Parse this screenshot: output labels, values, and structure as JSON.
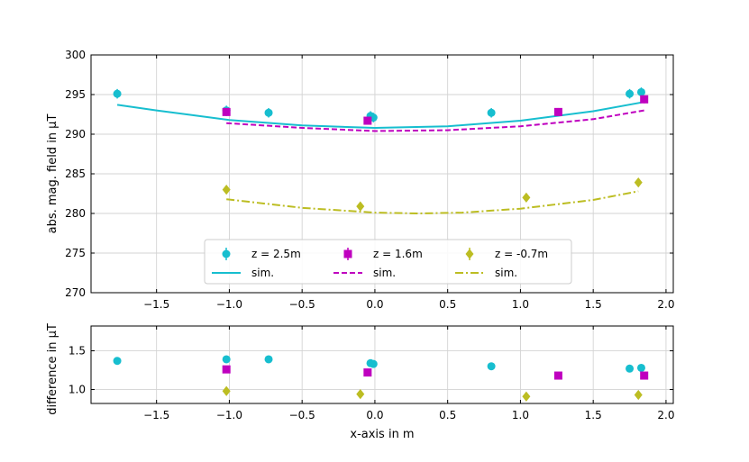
{
  "colors": {
    "cyan": "#17becf",
    "magenta": "#bf00bf",
    "olive": "#bcbd22",
    "grid": "#d3d3d3",
    "axis": "#000000"
  },
  "chart_data": [
    {
      "id": "top",
      "type": "scatter",
      "xlabel": "",
      "ylabel": "abs. mag. field in µT",
      "xlim": [
        -1.95,
        2.05
      ],
      "ylim": [
        270,
        300
      ],
      "xticks": [
        -1.5,
        -1.0,
        -0.5,
        0.0,
        0.5,
        1.0,
        1.5,
        2.0
      ],
      "xtick_labels": [
        "−1.5",
        "−1.0",
        "−0.5",
        "0.0",
        "0.5",
        "1.0",
        "1.5",
        "2.0"
      ],
      "yticks": [
        270,
        275,
        280,
        285,
        290,
        295,
        300
      ],
      "ytick_labels": [
        "270",
        "275",
        "280",
        "285",
        "290",
        "295",
        "300"
      ],
      "grid": true,
      "legend_position": "bottom-center",
      "series": [
        {
          "name": "z = 2.5m",
          "marker": "circle",
          "color_key": "cyan",
          "x": [
            -1.77,
            -1.02,
            -0.73,
            -0.03,
            -0.01,
            0.8,
            1.75,
            1.83
          ],
          "y": [
            295.1,
            293.0,
            292.7,
            292.3,
            292.1,
            292.7,
            295.1,
            295.3
          ],
          "err": [
            0.6,
            0.6,
            0.6,
            0.6,
            0.6,
            0.6,
            0.6,
            0.6
          ]
        },
        {
          "name": "z = 1.6m",
          "marker": "square",
          "color_key": "magenta",
          "x": [
            -1.02,
            -0.05,
            1.26,
            1.85
          ],
          "y": [
            292.8,
            291.7,
            292.8,
            294.4
          ],
          "err": [
            0.5,
            0.5,
            0.5,
            0.5
          ]
        },
        {
          "name": "z = -0.7m",
          "marker": "diamond",
          "color_key": "olive",
          "x": [
            -1.02,
            -0.1,
            1.04,
            1.81
          ],
          "y": [
            283.0,
            280.9,
            282.0,
            283.9
          ],
          "err": [
            0.3,
            0.3,
            0.3,
            0.3
          ]
        }
      ],
      "sim_curves": [
        {
          "name": "sim.",
          "style": "solid",
          "color_key": "cyan",
          "x": [
            -1.77,
            -1.5,
            -1.0,
            -0.5,
            0.0,
            0.5,
            1.0,
            1.5,
            1.83
          ],
          "y": [
            293.7,
            293.0,
            291.8,
            291.1,
            290.8,
            291.0,
            291.7,
            292.9,
            294.0
          ]
        },
        {
          "name": "sim.",
          "style": "dashed",
          "color_key": "magenta",
          "x": [
            -1.02,
            -0.5,
            0.0,
            0.5,
            1.0,
            1.5,
            1.85
          ],
          "y": [
            291.4,
            290.8,
            290.4,
            290.5,
            291.0,
            291.9,
            293.0
          ]
        },
        {
          "name": "sim.",
          "style": "dashdot",
          "color_key": "olive",
          "x": [
            -1.02,
            -0.5,
            0.0,
            0.3,
            0.6,
            1.0,
            1.5,
            1.81
          ],
          "y": [
            281.8,
            280.7,
            280.1,
            280.0,
            280.1,
            280.6,
            281.7,
            282.8
          ]
        }
      ],
      "legend_entries": [
        {
          "label": "z = 2.5m",
          "marker": "circle",
          "color_key": "cyan"
        },
        {
          "label": "z = 1.6m",
          "marker": "square",
          "color_key": "magenta"
        },
        {
          "label": "z = -0.7m",
          "marker": "diamond",
          "color_key": "olive"
        },
        {
          "label": "sim.",
          "line": "solid",
          "color_key": "cyan"
        },
        {
          "label": "sim.",
          "line": "dashed",
          "color_key": "magenta"
        },
        {
          "label": "sim.",
          "line": "dashdot",
          "color_key": "olive"
        }
      ]
    },
    {
      "id": "bottom",
      "type": "scatter",
      "xlabel": "x-axis in m",
      "ylabel": "difference in µT",
      "xlim": [
        -1.95,
        2.05
      ],
      "ylim": [
        0.82,
        1.82
      ],
      "xticks": [
        -1.5,
        -1.0,
        -0.5,
        0.0,
        0.5,
        1.0,
        1.5,
        2.0
      ],
      "xtick_labels": [
        "−1.5",
        "−1.0",
        "−0.5",
        "0.0",
        "0.5",
        "1.0",
        "1.5",
        "2.0"
      ],
      "yticks": [
        1.0,
        1.5
      ],
      "ytick_labels": [
        "1.0",
        "1.5"
      ],
      "grid": true,
      "series": [
        {
          "name": "z = 2.5m",
          "marker": "circle",
          "color_key": "cyan",
          "x": [
            -1.77,
            -1.02,
            -0.73,
            -0.03,
            -0.01,
            0.8,
            1.75,
            1.83
          ],
          "y": [
            1.37,
            1.39,
            1.39,
            1.34,
            1.33,
            1.3,
            1.27,
            1.28
          ]
        },
        {
          "name": "z = 1.6m",
          "marker": "square",
          "color_key": "magenta",
          "x": [
            -1.02,
            -0.05,
            1.26,
            1.85
          ],
          "y": [
            1.26,
            1.22,
            1.18,
            1.18
          ]
        },
        {
          "name": "z = -0.7m",
          "marker": "diamond",
          "color_key": "olive",
          "x": [
            -1.02,
            -0.1,
            1.04,
            1.81
          ],
          "y": [
            0.98,
            0.94,
            0.91,
            0.93
          ]
        }
      ]
    }
  ]
}
